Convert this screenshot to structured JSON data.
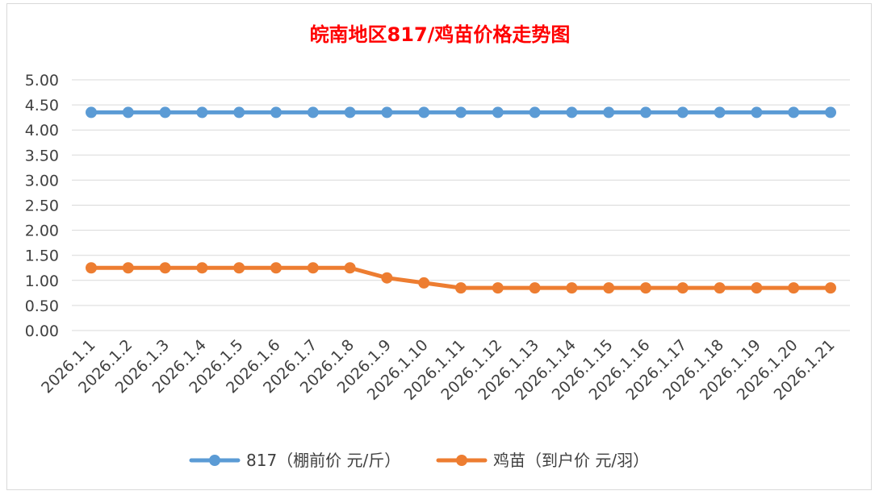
{
  "chart_data": {
    "type": "line",
    "title": "皖南地区817/鸡苗价格走势图",
    "xlabel": "",
    "ylabel": "",
    "categories": [
      "2026.1.1",
      "2026.1.2",
      "2026.1.3",
      "2026.1.4",
      "2026.1.5",
      "2026.1.6",
      "2026.1.7",
      "2026.1.8",
      "2026.1.9",
      "2026.1.10",
      "2026.1.11",
      "2026.1.12",
      "2026.1.13",
      "2026.1.14",
      "2026.1.15",
      "2026.1.16",
      "2026.1.17",
      "2026.1.18",
      "2026.1.19",
      "2026.1.20",
      "2026.1.21"
    ],
    "yticks": [
      "0.00",
      "0.50",
      "1.00",
      "1.50",
      "2.00",
      "2.50",
      "3.00",
      "3.50",
      "4.00",
      "4.50",
      "5.00"
    ],
    "ylim": [
      0,
      5
    ],
    "grid": true,
    "legend_position": "bottom",
    "series": [
      {
        "name": "817（棚前价 元/斤）",
        "color": "#5b9bd5",
        "values": [
          4.35,
          4.35,
          4.35,
          4.35,
          4.35,
          4.35,
          4.35,
          4.35,
          4.35,
          4.35,
          4.35,
          4.35,
          4.35,
          4.35,
          4.35,
          4.35,
          4.35,
          4.35,
          4.35,
          4.35,
          4.35
        ]
      },
      {
        "name": "鸡苗（到户价 元/羽）",
        "color": "#ed7d31",
        "values": [
          1.25,
          1.25,
          1.25,
          1.25,
          1.25,
          1.25,
          1.25,
          1.25,
          1.05,
          0.95,
          0.85,
          0.85,
          0.85,
          0.85,
          0.85,
          0.85,
          0.85,
          0.85,
          0.85,
          0.85,
          0.85
        ]
      }
    ]
  }
}
